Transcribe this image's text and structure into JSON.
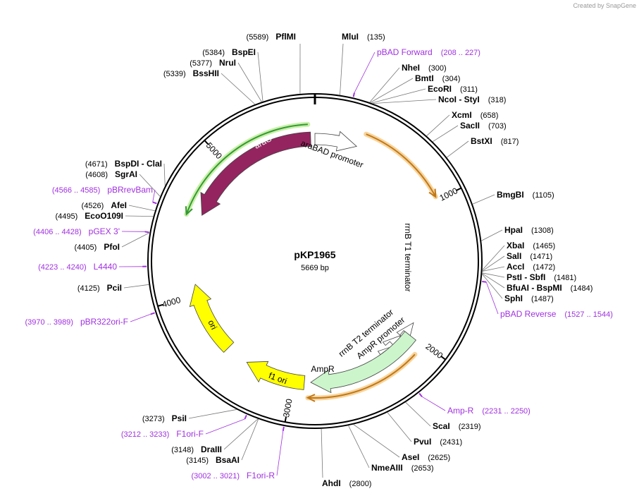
{
  "credit": "Created by SnapGene",
  "plasmid": {
    "name": "pKP1965",
    "size": "5669 bp"
  },
  "ticks": [
    "1000",
    "2000",
    "3000",
    "4000",
    "5000"
  ],
  "features": [
    {
      "label": "araC"
    },
    {
      "label": "araBAD promoter"
    },
    {
      "label": "rrnB T1 terminator"
    },
    {
      "label": "rrnB T2 terminator"
    },
    {
      "label": "AmpR promoter"
    },
    {
      "label": "AmpR"
    },
    {
      "label": "f1 ori"
    },
    {
      "label": "ori"
    }
  ],
  "enzymes": [
    {
      "name": "MluI",
      "position": "(135)"
    },
    {
      "name": "NheI",
      "position": "(300)"
    },
    {
      "name": "BmtI",
      "position": "(304)"
    },
    {
      "name": "EcoRI",
      "position": "(311)"
    },
    {
      "name": "NcoI - StyI",
      "position": "(318)"
    },
    {
      "name": "XcmI",
      "position": "(658)"
    },
    {
      "name": "SacII",
      "position": "(703)"
    },
    {
      "name": "BstXI",
      "position": "(817)"
    },
    {
      "name": "BmgBI",
      "position": "(1105)"
    },
    {
      "name": "HpaI",
      "position": "(1308)"
    },
    {
      "name": "XbaI",
      "position": "(1465)"
    },
    {
      "name": "SalI",
      "position": "(1471)"
    },
    {
      "name": "AccI",
      "position": "(1472)"
    },
    {
      "name": "PstI - SbfI",
      "position": "(1481)"
    },
    {
      "name": "BfuAI - BspMI",
      "position": "(1484)"
    },
    {
      "name": "SphI",
      "position": "(1487)"
    },
    {
      "name": "ScaI",
      "position": "(2319)"
    },
    {
      "name": "PvuI",
      "position": "(2431)"
    },
    {
      "name": "AseI",
      "position": "(2625)"
    },
    {
      "name": "NmeAIII",
      "position": "(2653)"
    },
    {
      "name": "AhdI",
      "position": "(2800)"
    },
    {
      "name": "PflMI",
      "position": "(5589)"
    },
    {
      "name": "BspEI",
      "position": "(5384)"
    },
    {
      "name": "NruI",
      "position": "(5377)"
    },
    {
      "name": "BssHII",
      "position": "(5339)"
    },
    {
      "name": "BspDI - ClaI",
      "position": "(4671)"
    },
    {
      "name": "SgrAI",
      "position": "(4608)"
    },
    {
      "name": "AfeI",
      "position": "(4526)"
    },
    {
      "name": "EcoO109I",
      "position": "(4495)"
    },
    {
      "name": "PfoI",
      "position": "(4405)"
    },
    {
      "name": "PciI",
      "position": "(4125)"
    },
    {
      "name": "PsiI",
      "position": "(3273)"
    },
    {
      "name": "DraIII",
      "position": "(3148)"
    },
    {
      "name": "BsaAI",
      "position": "(3145)"
    }
  ],
  "primers": [
    {
      "name": "pBAD Forward",
      "range": "(208 .. 227)"
    },
    {
      "name": "pBAD Reverse",
      "range": "(1527 .. 1544)"
    },
    {
      "name": "Amp-R",
      "range": "(2231 .. 2250)"
    },
    {
      "name": "pBRrevBam",
      "range": "(4566 .. 4585)"
    },
    {
      "name": "pGEX 3'",
      "range": "(4406 .. 4428)"
    },
    {
      "name": "L4440",
      "range": "(4223 .. 4240)"
    },
    {
      "name": "pBR322ori-F",
      "range": "(3970 .. 3989)"
    },
    {
      "name": "F1ori-F",
      "range": "(3212 .. 3233)"
    },
    {
      "name": "F1ori-R",
      "range": "(3002 .. 3021)"
    }
  ]
}
